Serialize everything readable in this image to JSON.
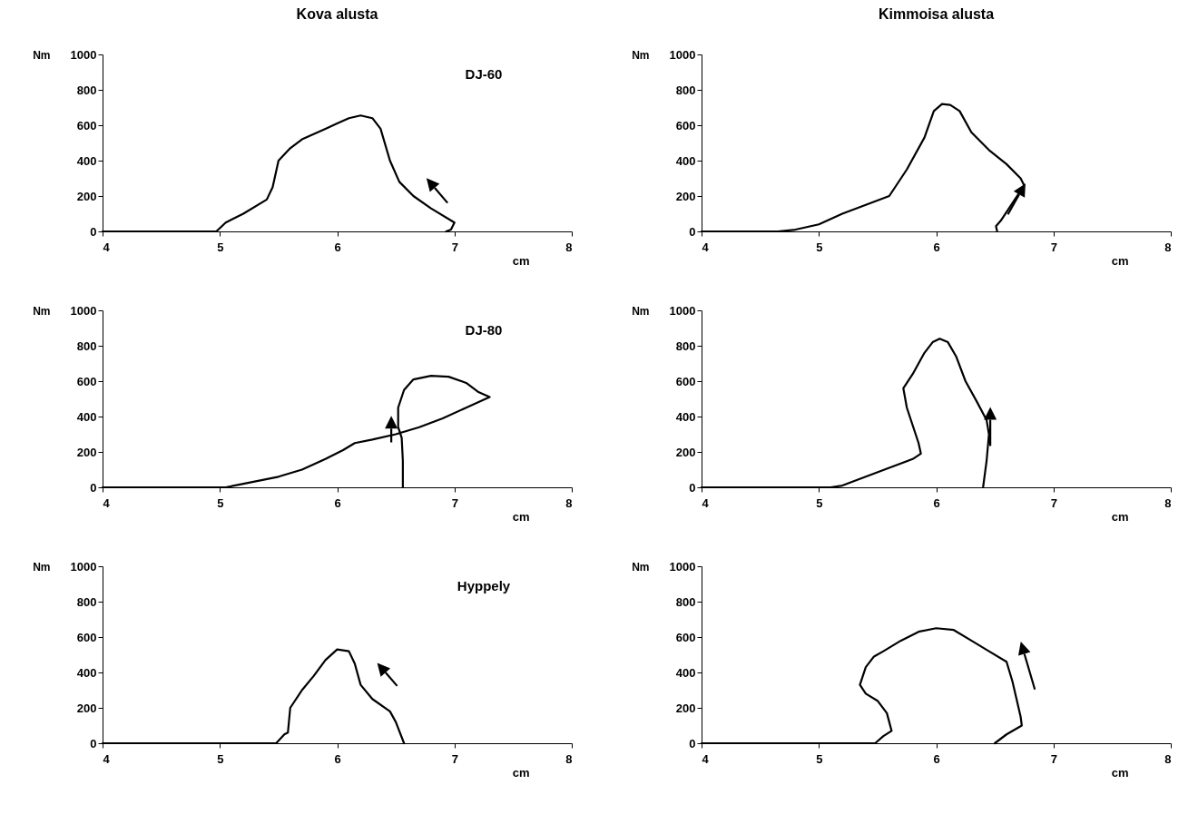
{
  "chart_data": [
    {
      "type": "line",
      "title": "Kova alusta",
      "xlabel": "cm",
      "ylabel": "Nm",
      "annotations": [
        "DJ-60"
      ],
      "xlim": [
        4,
        8
      ],
      "ylim": [
        0,
        1000
      ],
      "xticks": [
        4,
        5,
        6,
        7,
        8
      ],
      "yticks": [
        0,
        200,
        400,
        600,
        800,
        1000
      ],
      "grid": false,
      "series": [
        {
          "color": "#000000",
          "x": [
            4,
            4.97,
            5.05,
            5.2,
            5.4,
            5.45,
            5.5,
            5.6,
            5.7,
            5.9,
            6.0,
            6.1,
            6.2,
            6.3,
            6.37,
            6.45,
            6.53,
            6.65,
            6.8,
            7.0,
            6.97,
            6.93
          ],
          "values": [
            0,
            0,
            50,
            100,
            180,
            250,
            400,
            470,
            520,
            580,
            610,
            640,
            655,
            640,
            580,
            400,
            280,
            200,
            130,
            50,
            10,
            0
          ]
        }
      ]
    },
    {
      "type": "line",
      "title": "Kimmoisa alusta",
      "xlabel": "cm",
      "ylabel": "Nm",
      "xlim": [
        4,
        8
      ],
      "ylim": [
        0,
        1000
      ],
      "xticks": [
        4,
        5,
        6,
        7,
        8
      ],
      "yticks": [
        0,
        200,
        400,
        600,
        800,
        1000
      ],
      "grid": false,
      "series": [
        {
          "color": "#000000",
          "x": [
            4,
            4.65,
            4.8,
            5.0,
            5.2,
            5.4,
            5.6,
            5.75,
            5.9,
            5.98,
            6.05,
            6.12,
            6.2,
            6.3,
            6.45,
            6.6,
            6.72,
            6.75,
            6.65,
            6.55,
            6.51,
            6.52
          ],
          "values": [
            0,
            0,
            10,
            40,
            100,
            150,
            200,
            350,
            530,
            680,
            720,
            715,
            680,
            560,
            460,
            380,
            300,
            260,
            160,
            60,
            30,
            0
          ]
        }
      ]
    },
    {
      "type": "line",
      "xlabel": "cm",
      "ylabel": "Nm",
      "annotations": [
        "DJ-80"
      ],
      "xlim": [
        4,
        8
      ],
      "ylim": [
        0,
        1000
      ],
      "xticks": [
        4,
        5,
        6,
        7,
        8
      ],
      "yticks": [
        0,
        200,
        400,
        600,
        800,
        1000
      ],
      "grid": false,
      "series": [
        {
          "color": "#000000",
          "x": [
            4,
            5.05,
            5.2,
            5.5,
            5.7,
            5.9,
            6.05,
            6.15,
            6.3,
            6.5,
            6.7,
            6.9,
            7.1,
            7.3,
            7.2,
            7.1,
            6.95,
            6.8,
            6.65,
            6.57,
            6.52,
            6.52,
            6.55,
            6.56,
            6.56
          ],
          "values": [
            0,
            0,
            20,
            60,
            100,
            160,
            210,
            250,
            270,
            300,
            340,
            390,
            450,
            510,
            540,
            590,
            625,
            630,
            610,
            550,
            450,
            340,
            280,
            150,
            0
          ]
        }
      ]
    },
    {
      "type": "line",
      "xlabel": "cm",
      "ylabel": "Nm",
      "xlim": [
        4,
        8
      ],
      "ylim": [
        0,
        1000
      ],
      "xticks": [
        4,
        5,
        6,
        7,
        8
      ],
      "yticks": [
        0,
        200,
        400,
        600,
        800,
        1000
      ],
      "grid": false,
      "series": [
        {
          "color": "#000000",
          "x": [
            4,
            5.1,
            5.2,
            5.4,
            5.6,
            5.8,
            5.87,
            5.85,
            5.8,
            5.75,
            5.72,
            5.8,
            5.9,
            5.97,
            6.03,
            6.1,
            6.17,
            6.25,
            6.35,
            6.43,
            6.45,
            6.43,
            6.4
          ],
          "values": [
            0,
            0,
            10,
            60,
            110,
            160,
            190,
            250,
            350,
            450,
            560,
            640,
            760,
            820,
            840,
            820,
            740,
            600,
            480,
            380,
            300,
            150,
            0
          ]
        }
      ]
    },
    {
      "type": "line",
      "xlabel": "cm",
      "ylabel": "Nm",
      "annotations": [
        "Hyppely"
      ],
      "xlim": [
        4,
        8
      ],
      "ylim": [
        0,
        1000
      ],
      "xticks": [
        4,
        5,
        6,
        7,
        8
      ],
      "yticks": [
        0,
        200,
        400,
        600,
        800,
        1000
      ],
      "grid": false,
      "series": [
        {
          "color": "#000000",
          "x": [
            4,
            5.48,
            5.55,
            5.58,
            5.6,
            5.7,
            5.8,
            5.9,
            6.0,
            6.1,
            6.15,
            6.2,
            6.3,
            6.45,
            6.5,
            6.57
          ],
          "values": [
            0,
            0,
            50,
            60,
            200,
            300,
            380,
            470,
            530,
            520,
            450,
            330,
            250,
            180,
            120,
            0
          ]
        }
      ]
    },
    {
      "type": "line",
      "xlabel": "cm",
      "ylabel": "Nm",
      "xlim": [
        4,
        8
      ],
      "ylim": [
        0,
        1000
      ],
      "xticks": [
        4,
        5,
        6,
        7,
        8
      ],
      "yticks": [
        0,
        200,
        400,
        600,
        800,
        1000
      ],
      "grid": false,
      "series": [
        {
          "color": "#000000",
          "x": [
            4,
            5.48,
            5.55,
            5.62,
            5.58,
            5.5,
            5.4,
            5.35,
            5.4,
            5.47,
            5.55,
            5.7,
            5.85,
            6.0,
            6.15,
            6.3,
            6.45,
            6.6,
            6.65,
            6.72,
            6.73,
            6.6,
            6.5
          ],
          "values": [
            0,
            0,
            40,
            70,
            170,
            240,
            280,
            330,
            430,
            490,
            520,
            580,
            630,
            650,
            640,
            580,
            520,
            460,
            350,
            150,
            100,
            50,
            0
          ]
        }
      ]
    }
  ]
}
